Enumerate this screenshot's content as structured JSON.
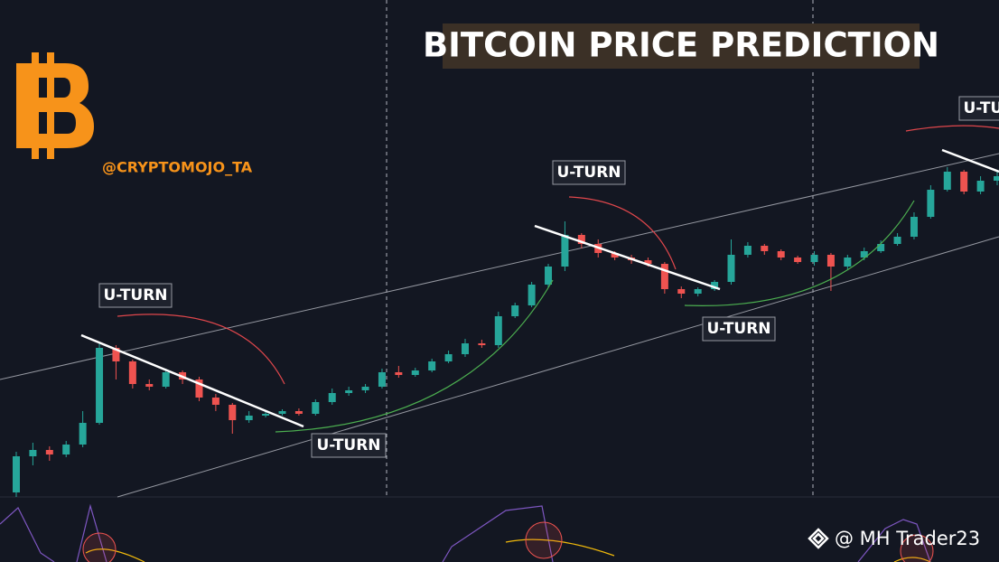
{
  "chart_data": {
    "type": "candlestick",
    "title": "BITCOIN PRICE PREDICTION",
    "handle": "@CRYPTOMOJO_TA",
    "watermark": "@ MH Trader23",
    "annotations": [
      "U-TURN",
      "U-TURN",
      "U-TURN",
      "U-TURN",
      "U-TURN"
    ],
    "up_color": "#26a69a",
    "down_color": "#ef5350",
    "ylim": [
      0,
      550
    ],
    "open": [
      5,
      45,
      52,
      47,
      58,
      82,
      165,
      150,
      125,
      122,
      138,
      130,
      110,
      102,
      85,
      90,
      92,
      95,
      92,
      105,
      115,
      118,
      122,
      138,
      135,
      140,
      150,
      158,
      170,
      168,
      200,
      212,
      235,
      255,
      290,
      280,
      270,
      265,
      262,
      258,
      230,
      225,
      230,
      238,
      268,
      278,
      272,
      265,
      260,
      268,
      255,
      265,
      272,
      280,
      288,
      310,
      340,
      360,
      338,
      350
    ],
    "high": [
      50,
      60,
      56,
      62,
      95,
      172,
      168,
      152,
      130,
      142,
      140,
      133,
      114,
      104,
      95,
      96,
      97,
      98,
      108,
      120,
      122,
      125,
      142,
      145,
      143,
      153,
      162,
      175,
      174,
      205,
      215,
      238,
      258,
      305,
      292,
      285,
      272,
      268,
      265,
      260,
      233,
      232,
      240,
      285,
      282,
      280,
      274,
      267,
      272,
      270,
      268,
      276,
      284,
      292,
      315,
      345,
      365,
      362,
      355,
      360
    ],
    "low": [
      0,
      35,
      40,
      44,
      55,
      80,
      130,
      120,
      118,
      120,
      125,
      106,
      95,
      70,
      82,
      88,
      90,
      90,
      90,
      102,
      112,
      115,
      120,
      132,
      133,
      138,
      148,
      155,
      165,
      165,
      198,
      210,
      232,
      250,
      275,
      265,
      262,
      258,
      255,
      225,
      220,
      222,
      228,
      235,
      265,
      268,
      262,
      258,
      256,
      228,
      252,
      262,
      270,
      278,
      285,
      308,
      338,
      335,
      335,
      345
    ],
    "close": [
      45,
      52,
      47,
      58,
      82,
      165,
      150,
      125,
      122,
      138,
      130,
      110,
      102,
      85,
      90,
      92,
      95,
      92,
      105,
      115,
      118,
      122,
      138,
      135,
      140,
      150,
      158,
      170,
      168,
      200,
      212,
      235,
      255,
      290,
      280,
      270,
      265,
      262,
      258,
      230,
      225,
      230,
      238,
      268,
      278,
      272,
      265,
      260,
      268,
      255,
      265,
      272,
      280,
      288,
      310,
      340,
      360,
      338,
      350,
      355
    ]
  }
}
